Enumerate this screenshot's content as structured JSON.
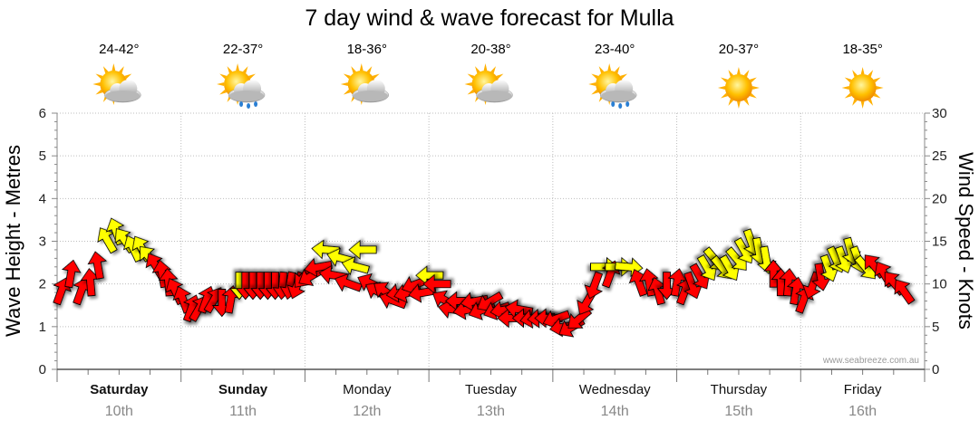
{
  "chart_data": {
    "type": "line",
    "title": "7 day wind & wave forecast for Mulla",
    "ylabel_left": "Wave Height - Metres",
    "ylabel_right": "Wind Speed - Knots",
    "ylim_left": [
      0,
      6
    ],
    "ylim_right": [
      0,
      30
    ],
    "yticks_left": [
      "0",
      "1",
      "2",
      "3",
      "4",
      "5",
      "6"
    ],
    "yticks_right": [
      "0",
      "5",
      "10",
      "15",
      "20",
      "25",
      "30"
    ],
    "grid": true,
    "credit": "www.seabreeze.com.au",
    "days": [
      {
        "name": "Saturday",
        "date": "10th",
        "temp": "24-42°",
        "icon": "partly-cloudy-icon",
        "bold": true
      },
      {
        "name": "Sunday",
        "date": "11th",
        "temp": "22-37°",
        "icon": "showers-icon",
        "bold": true
      },
      {
        "name": "Monday",
        "date": "12th",
        "temp": "18-36°",
        "icon": "partly-cloudy-icon",
        "bold": false
      },
      {
        "name": "Tuesday",
        "date": "13th",
        "temp": "20-38°",
        "icon": "partly-cloudy-icon",
        "bold": false
      },
      {
        "name": "Wednesday",
        "date": "14th",
        "temp": "23-40°",
        "icon": "showers-icon",
        "bold": false
      },
      {
        "name": "Thursday",
        "date": "15th",
        "temp": "20-37°",
        "icon": "sunny-icon",
        "bold": false
      },
      {
        "name": "Friday",
        "date": "16th",
        "temp": "18-35°",
        "icon": "sunny-icon",
        "bold": false
      }
    ],
    "wind_arrow_colors": {
      "strong": "#ff0000",
      "light": "#ffff00"
    },
    "wind_arrows": [
      {
        "day": 0.03,
        "speed": 9,
        "dir": 200,
        "c": "strong"
      },
      {
        "day": 0.11,
        "speed": 11,
        "dir": 190,
        "c": "strong"
      },
      {
        "day": 0.19,
        "speed": 9,
        "dir": 200,
        "c": "strong"
      },
      {
        "day": 0.27,
        "speed": 10,
        "dir": 175,
        "c": "strong"
      },
      {
        "day": 0.33,
        "speed": 12,
        "dir": 170,
        "c": "strong"
      },
      {
        "day": 0.41,
        "speed": 15,
        "dir": 150,
        "c": "light"
      },
      {
        "day": 0.48,
        "speed": 16,
        "dir": 160,
        "c": "light"
      },
      {
        "day": 0.55,
        "speed": 15,
        "dir": 145,
        "c": "light"
      },
      {
        "day": 0.62,
        "speed": 14,
        "dir": 155,
        "c": "light"
      },
      {
        "day": 0.69,
        "speed": 14,
        "dir": 150,
        "c": "light"
      },
      {
        "day": 0.75,
        "speed": 13,
        "dir": 140,
        "c": "light"
      },
      {
        "day": 0.8,
        "speed": 12,
        "dir": 150,
        "c": "strong"
      },
      {
        "day": 0.85,
        "speed": 11,
        "dir": 170,
        "c": "strong"
      },
      {
        "day": 0.9,
        "speed": 10,
        "dir": 175,
        "c": "strong"
      },
      {
        "day": 0.96,
        "speed": 9,
        "dir": 155,
        "c": "strong"
      },
      {
        "day": 1.02,
        "speed": 8,
        "dir": 160,
        "c": "strong"
      },
      {
        "day": 1.08,
        "speed": 7,
        "dir": 200,
        "c": "strong"
      },
      {
        "day": 1.14,
        "speed": 7,
        "dir": 210,
        "c": "strong"
      },
      {
        "day": 1.2,
        "speed": 8,
        "dir": 200,
        "c": "strong"
      },
      {
        "day": 1.26,
        "speed": 8,
        "dir": 210,
        "c": "strong"
      },
      {
        "day": 1.33,
        "speed": 8,
        "dir": 0,
        "c": "strong"
      },
      {
        "day": 1.4,
        "speed": 8,
        "dir": 190,
        "c": "strong"
      },
      {
        "day": 1.47,
        "speed": 10,
        "dir": 0,
        "c": "light"
      },
      {
        "day": 1.52,
        "speed": 10,
        "dir": 0,
        "c": "strong"
      },
      {
        "day": 1.58,
        "speed": 10,
        "dir": 0,
        "c": "strong"
      },
      {
        "day": 1.64,
        "speed": 10,
        "dir": 0,
        "c": "strong"
      },
      {
        "day": 1.7,
        "speed": 10,
        "dir": 0,
        "c": "strong"
      },
      {
        "day": 1.76,
        "speed": 10,
        "dir": 0,
        "c": "strong"
      },
      {
        "day": 1.82,
        "speed": 10,
        "dir": 5,
        "c": "strong"
      },
      {
        "day": 1.88,
        "speed": 10,
        "dir": 10,
        "c": "strong"
      },
      {
        "day": 1.94,
        "speed": 10,
        "dir": 20,
        "c": "strong"
      },
      {
        "day": 2.0,
        "speed": 11,
        "dir": 40,
        "c": "strong"
      },
      {
        "day": 2.06,
        "speed": 11,
        "dir": 60,
        "c": "strong"
      },
      {
        "day": 2.12,
        "speed": 12,
        "dir": 80,
        "c": "strong"
      },
      {
        "day": 2.18,
        "speed": 14,
        "dir": 95,
        "c": "light"
      },
      {
        "day": 2.24,
        "speed": 11,
        "dir": 100,
        "c": "strong"
      },
      {
        "day": 2.3,
        "speed": 13,
        "dir": 105,
        "c": "light"
      },
      {
        "day": 2.36,
        "speed": 10,
        "dir": 110,
        "c": "strong"
      },
      {
        "day": 2.42,
        "speed": 12,
        "dir": 105,
        "c": "light"
      },
      {
        "day": 2.48,
        "speed": 14,
        "dir": 90,
        "c": "light"
      },
      {
        "day": 2.54,
        "speed": 10,
        "dir": 115,
        "c": "strong"
      },
      {
        "day": 2.6,
        "speed": 9,
        "dir": 120,
        "c": "strong"
      },
      {
        "day": 2.66,
        "speed": 9,
        "dir": 125,
        "c": "strong"
      },
      {
        "day": 2.72,
        "speed": 8,
        "dir": 110,
        "c": "strong"
      },
      {
        "day": 2.78,
        "speed": 9,
        "dir": 80,
        "c": "strong"
      },
      {
        "day": 2.84,
        "speed": 9,
        "dir": 75,
        "c": "strong"
      },
      {
        "day": 2.9,
        "speed": 10,
        "dir": 70,
        "c": "strong"
      },
      {
        "day": 2.96,
        "speed": 9,
        "dir": 80,
        "c": "strong"
      },
      {
        "day": 3.02,
        "speed": 11,
        "dir": 90,
        "c": "light"
      },
      {
        "day": 3.08,
        "speed": 10,
        "dir": 90,
        "c": "strong"
      },
      {
        "day": 3.14,
        "speed": 8,
        "dir": 120,
        "c": "strong"
      },
      {
        "day": 3.2,
        "speed": 7,
        "dir": 100,
        "c": "strong"
      },
      {
        "day": 3.26,
        "speed": 8,
        "dir": 90,
        "c": "strong"
      },
      {
        "day": 3.32,
        "speed": 7,
        "dir": 80,
        "c": "strong"
      },
      {
        "day": 3.38,
        "speed": 8,
        "dir": 80,
        "c": "strong"
      },
      {
        "day": 3.44,
        "speed": 7,
        "dir": 70,
        "c": "strong"
      },
      {
        "day": 3.5,
        "speed": 8,
        "dir": 60,
        "c": "strong"
      },
      {
        "day": 3.56,
        "speed": 7,
        "dir": 70,
        "c": "strong"
      },
      {
        "day": 3.62,
        "speed": 7,
        "dir": 80,
        "c": "strong"
      },
      {
        "day": 3.68,
        "speed": 6,
        "dir": 90,
        "c": "strong"
      },
      {
        "day": 3.74,
        "speed": 7,
        "dir": 100,
        "c": "strong"
      },
      {
        "day": 3.8,
        "speed": 6,
        "dir": 90,
        "c": "strong"
      },
      {
        "day": 3.86,
        "speed": 6,
        "dir": 80,
        "c": "strong"
      },
      {
        "day": 3.92,
        "speed": 6,
        "dir": 85,
        "c": "strong"
      },
      {
        "day": 3.98,
        "speed": 6,
        "dir": 90,
        "c": "strong"
      },
      {
        "day": 4.04,
        "speed": 6,
        "dir": 70,
        "c": "strong"
      },
      {
        "day": 4.1,
        "speed": 5,
        "dir": 80,
        "c": "strong"
      },
      {
        "day": 4.16,
        "speed": 5,
        "dir": 60,
        "c": "strong"
      },
      {
        "day": 4.22,
        "speed": 6,
        "dir": 50,
        "c": "strong"
      },
      {
        "day": 4.28,
        "speed": 8,
        "dir": 30,
        "c": "strong"
      },
      {
        "day": 4.34,
        "speed": 10,
        "dir": 20,
        "c": "strong"
      },
      {
        "day": 4.4,
        "speed": 12,
        "dir": 270,
        "c": "light"
      },
      {
        "day": 4.46,
        "speed": 11,
        "dir": 200,
        "c": "strong"
      },
      {
        "day": 4.52,
        "speed": 12,
        "dir": 270,
        "c": "light"
      },
      {
        "day": 4.6,
        "speed": 12,
        "dir": 275,
        "c": "light"
      },
      {
        "day": 4.7,
        "speed": 10,
        "dir": 160,
        "c": "strong"
      },
      {
        "day": 4.78,
        "speed": 10,
        "dir": 170,
        "c": "strong"
      },
      {
        "day": 4.85,
        "speed": 9,
        "dir": 165,
        "c": "strong"
      },
      {
        "day": 4.92,
        "speed": 10,
        "dir": 0,
        "c": "strong"
      },
      {
        "day": 5.0,
        "speed": 10,
        "dir": 190,
        "c": "strong"
      },
      {
        "day": 5.06,
        "speed": 9,
        "dir": 200,
        "c": "strong"
      },
      {
        "day": 5.12,
        "speed": 10,
        "dir": 340,
        "c": "strong"
      },
      {
        "day": 5.18,
        "speed": 11,
        "dir": 330,
        "c": "strong"
      },
      {
        "day": 5.24,
        "speed": 12,
        "dir": 330,
        "c": "light"
      },
      {
        "day": 5.3,
        "speed": 13,
        "dir": 320,
        "c": "light"
      },
      {
        "day": 5.36,
        "speed": 12,
        "dir": 320,
        "c": "light"
      },
      {
        "day": 5.42,
        "speed": 12,
        "dir": 330,
        "c": "light"
      },
      {
        "day": 5.48,
        "speed": 13,
        "dir": 320,
        "c": "light"
      },
      {
        "day": 5.54,
        "speed": 14,
        "dir": 330,
        "c": "light"
      },
      {
        "day": 5.6,
        "speed": 15,
        "dir": 340,
        "c": "light"
      },
      {
        "day": 5.66,
        "speed": 14,
        "dir": 350,
        "c": "light"
      },
      {
        "day": 5.72,
        "speed": 13,
        "dir": 350,
        "c": "light"
      },
      {
        "day": 5.78,
        "speed": 11,
        "dir": 180,
        "c": "strong"
      },
      {
        "day": 5.84,
        "speed": 10,
        "dir": 180,
        "c": "strong"
      },
      {
        "day": 5.9,
        "speed": 10,
        "dir": 185,
        "c": "strong"
      },
      {
        "day": 5.96,
        "speed": 9,
        "dir": 190,
        "c": "strong"
      },
      {
        "day": 6.02,
        "speed": 8,
        "dir": 200,
        "c": "strong"
      },
      {
        "day": 6.1,
        "speed": 10,
        "dir": 20,
        "c": "strong"
      },
      {
        "day": 6.16,
        "speed": 11,
        "dir": 350,
        "c": "strong"
      },
      {
        "day": 6.22,
        "speed": 12,
        "dir": 340,
        "c": "light"
      },
      {
        "day": 6.28,
        "speed": 13,
        "dir": 335,
        "c": "light"
      },
      {
        "day": 6.34,
        "speed": 13,
        "dir": 340,
        "c": "light"
      },
      {
        "day": 6.4,
        "speed": 14,
        "dir": 345,
        "c": "light"
      },
      {
        "day": 6.46,
        "speed": 13,
        "dir": 340,
        "c": "light"
      },
      {
        "day": 6.52,
        "speed": 12,
        "dir": 320,
        "c": "light"
      },
      {
        "day": 6.6,
        "speed": 12,
        "dir": 140,
        "c": "strong"
      },
      {
        "day": 6.68,
        "speed": 11,
        "dir": 150,
        "c": "strong"
      },
      {
        "day": 6.76,
        "speed": 10,
        "dir": 140,
        "c": "strong"
      },
      {
        "day": 6.84,
        "speed": 9,
        "dir": 145,
        "c": "strong"
      }
    ]
  }
}
